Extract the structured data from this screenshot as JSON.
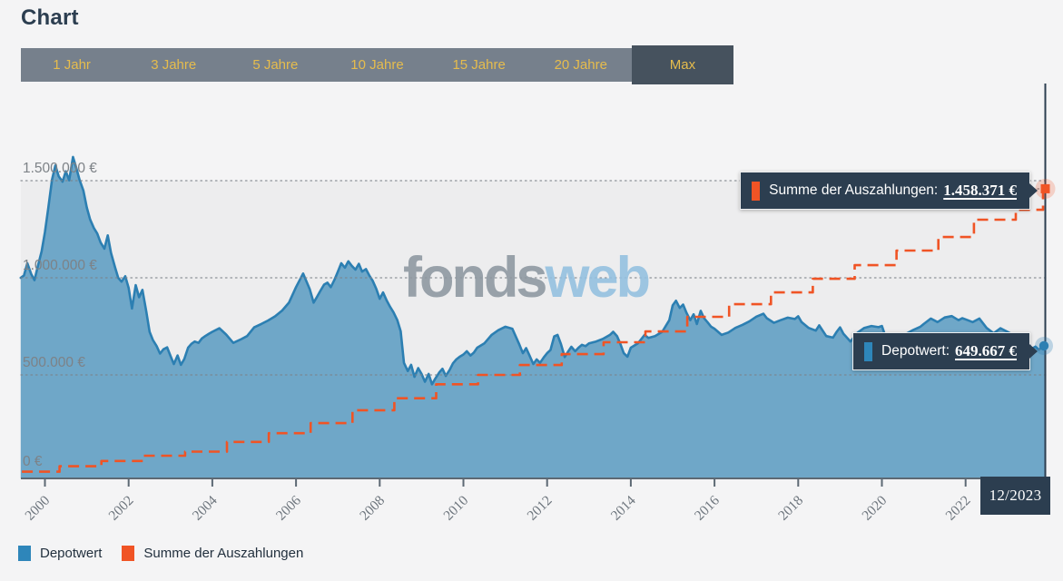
{
  "page": {
    "title": "Chart"
  },
  "tabs": {
    "items": [
      "1 Jahr",
      "3 Jahre",
      "5 Jahre",
      "10 Jahre",
      "15 Jahre",
      "20 Jahre",
      "Max"
    ],
    "selected": "Max"
  },
  "watermark": {
    "part1": "fonds",
    "part2": "web"
  },
  "tooltips": {
    "payout": {
      "label": "Summe der Auszahlungen:",
      "value": "1.458.371 €"
    },
    "depot": {
      "label": "Depotwert:",
      "value": "649.667 €"
    }
  },
  "date_badge": "12/2023",
  "legend": [
    {
      "label": "Depotwert",
      "color": "#2e86ba"
    },
    {
      "label": "Summe der Auszahlungen",
      "color": "#f05425"
    }
  ],
  "colors": {
    "page_bg": "#f4f4f5",
    "plot_band_bg": "#ededee",
    "tabbar_bg": "#76808c",
    "tab_selected_bg": "#46525e",
    "tab_text": "#e6bc4d",
    "navy": "#2c3e50",
    "depot_line": "#2c7fb2",
    "depot_fill": "#6fa7c8",
    "payout_line": "#f05425",
    "grid_dots": "#7d8288",
    "axis": "#5d6974",
    "x_label": "#6d757d",
    "y_label": "#7d8287"
  },
  "chart_data": {
    "type": "area",
    "title": "",
    "xlabel": "",
    "ylabel": "",
    "unit": "values in thousand EUR",
    "grid": "dotted-horizontal",
    "legend_position": "bottom-left",
    "x_range": [
      1999.42,
      2023.92
    ],
    "ylim": [
      0,
      2020
    ],
    "x_ticks": [
      2000,
      2002,
      2004,
      2006,
      2008,
      2010,
      2012,
      2014,
      2016,
      2018,
      2020,
      2022
    ],
    "y_ticks": [
      {
        "value": 1500,
        "label": "1.500.000 €"
      },
      {
        "value": 1000,
        "label": "1.000.000 €"
      },
      {
        "value": 500,
        "label": "500.000 €"
      },
      {
        "value": 0,
        "label": "0 €"
      }
    ],
    "end_date_label": "12/2023",
    "series": [
      {
        "name": "Depotwert",
        "type": "area",
        "line_color": "#2c7fb2",
        "fill_color": "#6fa7c8",
        "end_value": 649.667,
        "end_value_label": "649.667 €",
        "points": [
          [
            1999.42,
            1000
          ],
          [
            1999.5,
            1012
          ],
          [
            1999.58,
            1075
          ],
          [
            1999.67,
            1020
          ],
          [
            1999.75,
            988
          ],
          [
            1999.83,
            1060
          ],
          [
            1999.92,
            1135
          ],
          [
            2000.0,
            1235
          ],
          [
            2000.08,
            1360
          ],
          [
            2000.17,
            1505
          ],
          [
            2000.25,
            1578
          ],
          [
            2000.33,
            1522
          ],
          [
            2000.42,
            1495
          ],
          [
            2000.5,
            1548
          ],
          [
            2000.58,
            1502
          ],
          [
            2000.67,
            1622
          ],
          [
            2000.75,
            1565
          ],
          [
            2000.83,
            1502
          ],
          [
            2000.92,
            1448
          ],
          [
            2001.0,
            1362
          ],
          [
            2001.08,
            1300
          ],
          [
            2001.17,
            1256
          ],
          [
            2001.25,
            1228
          ],
          [
            2001.33,
            1182
          ],
          [
            2001.42,
            1150
          ],
          [
            2001.5,
            1218
          ],
          [
            2001.58,
            1128
          ],
          [
            2001.67,
            1058
          ],
          [
            2001.75,
            1000
          ],
          [
            2001.83,
            980
          ],
          [
            2001.92,
            1008
          ],
          [
            2002.0,
            948
          ],
          [
            2002.08,
            842
          ],
          [
            2002.17,
            962
          ],
          [
            2002.25,
            900
          ],
          [
            2002.33,
            938
          ],
          [
            2002.42,
            828
          ],
          [
            2002.5,
            722
          ],
          [
            2002.58,
            680
          ],
          [
            2002.67,
            648
          ],
          [
            2002.75,
            610
          ],
          [
            2002.83,
            632
          ],
          [
            2002.92,
            642
          ],
          [
            2003.0,
            598
          ],
          [
            2003.08,
            556
          ],
          [
            2003.17,
            600
          ],
          [
            2003.25,
            552
          ],
          [
            2003.33,
            582
          ],
          [
            2003.42,
            640
          ],
          [
            2003.5,
            660
          ],
          [
            2003.58,
            672
          ],
          [
            2003.67,
            665
          ],
          [
            2003.75,
            688
          ],
          [
            2003.83,
            700
          ],
          [
            2003.92,
            712
          ],
          [
            2004.0,
            722
          ],
          [
            2004.17,
            740
          ],
          [
            2004.33,
            708
          ],
          [
            2004.5,
            665
          ],
          [
            2004.67,
            682
          ],
          [
            2004.83,
            700
          ],
          [
            2005.0,
            745
          ],
          [
            2005.17,
            762
          ],
          [
            2005.33,
            780
          ],
          [
            2005.5,
            802
          ],
          [
            2005.67,
            832
          ],
          [
            2005.83,
            872
          ],
          [
            2006.0,
            952
          ],
          [
            2006.17,
            1022
          ],
          [
            2006.33,
            940
          ],
          [
            2006.42,
            872
          ],
          [
            2006.5,
            902
          ],
          [
            2006.58,
            932
          ],
          [
            2006.67,
            965
          ],
          [
            2006.75,
            975
          ],
          [
            2006.83,
            952
          ],
          [
            2006.92,
            990
          ],
          [
            2007.0,
            1032
          ],
          [
            2007.08,
            1075
          ],
          [
            2007.17,
            1052
          ],
          [
            2007.25,
            1085
          ],
          [
            2007.33,
            1062
          ],
          [
            2007.42,
            1042
          ],
          [
            2007.5,
            1072
          ],
          [
            2007.58,
            1032
          ],
          [
            2007.67,
            1045
          ],
          [
            2007.75,
            1012
          ],
          [
            2007.83,
            985
          ],
          [
            2007.92,
            942
          ],
          [
            2008.0,
            892
          ],
          [
            2008.08,
            925
          ],
          [
            2008.17,
            882
          ],
          [
            2008.25,
            850
          ],
          [
            2008.33,
            822
          ],
          [
            2008.42,
            782
          ],
          [
            2008.5,
            725
          ],
          [
            2008.58,
            562
          ],
          [
            2008.67,
            520
          ],
          [
            2008.75,
            552
          ],
          [
            2008.83,
            490
          ],
          [
            2008.92,
            535
          ],
          [
            2009.0,
            505
          ],
          [
            2009.08,
            465
          ],
          [
            2009.17,
            505
          ],
          [
            2009.25,
            452
          ],
          [
            2009.33,
            482
          ],
          [
            2009.42,
            512
          ],
          [
            2009.5,
            532
          ],
          [
            2009.58,
            495
          ],
          [
            2009.67,
            525
          ],
          [
            2009.75,
            560
          ],
          [
            2009.83,
            580
          ],
          [
            2009.92,
            595
          ],
          [
            2010.0,
            605
          ],
          [
            2010.08,
            622
          ],
          [
            2010.17,
            600
          ],
          [
            2010.25,
            615
          ],
          [
            2010.33,
            640
          ],
          [
            2010.5,
            662
          ],
          [
            2010.67,
            705
          ],
          [
            2010.83,
            730
          ],
          [
            2011.0,
            748
          ],
          [
            2011.17,
            738
          ],
          [
            2011.33,
            660
          ],
          [
            2011.42,
            612
          ],
          [
            2011.5,
            638
          ],
          [
            2011.58,
            600
          ],
          [
            2011.67,
            556
          ],
          [
            2011.75,
            580
          ],
          [
            2011.83,
            562
          ],
          [
            2011.92,
            590
          ],
          [
            2012.0,
            612
          ],
          [
            2012.08,
            628
          ],
          [
            2012.17,
            698
          ],
          [
            2012.25,
            706
          ],
          [
            2012.33,
            660
          ],
          [
            2012.42,
            592
          ],
          [
            2012.5,
            620
          ],
          [
            2012.58,
            645
          ],
          [
            2012.67,
            622
          ],
          [
            2012.75,
            640
          ],
          [
            2012.83,
            655
          ],
          [
            2012.92,
            648
          ],
          [
            2013.0,
            662
          ],
          [
            2013.17,
            672
          ],
          [
            2013.33,
            685
          ],
          [
            2013.5,
            706
          ],
          [
            2013.58,
            722
          ],
          [
            2013.67,
            700
          ],
          [
            2013.75,
            660
          ],
          [
            2013.83,
            612
          ],
          [
            2013.92,
            594
          ],
          [
            2014.0,
            640
          ],
          [
            2014.17,
            662
          ],
          [
            2014.33,
            706
          ],
          [
            2014.42,
            690
          ],
          [
            2014.58,
            700
          ],
          [
            2014.75,
            722
          ],
          [
            2014.92,
            782
          ],
          [
            2015.0,
            858
          ],
          [
            2015.08,
            882
          ],
          [
            2015.17,
            845
          ],
          [
            2015.25,
            862
          ],
          [
            2015.33,
            820
          ],
          [
            2015.42,
            782
          ],
          [
            2015.5,
            812
          ],
          [
            2015.58,
            762
          ],
          [
            2015.67,
            830
          ],
          [
            2015.75,
            792
          ],
          [
            2015.83,
            772
          ],
          [
            2015.92,
            748
          ],
          [
            2016.0,
            738
          ],
          [
            2016.17,
            706
          ],
          [
            2016.33,
            718
          ],
          [
            2016.5,
            742
          ],
          [
            2016.67,
            758
          ],
          [
            2016.83,
            775
          ],
          [
            2017.0,
            800
          ],
          [
            2017.17,
            815
          ],
          [
            2017.25,
            792
          ],
          [
            2017.42,
            768
          ],
          [
            2017.58,
            782
          ],
          [
            2017.75,
            795
          ],
          [
            2017.92,
            788
          ],
          [
            2018.0,
            802
          ],
          [
            2018.08,
            772
          ],
          [
            2018.25,
            742
          ],
          [
            2018.42,
            728
          ],
          [
            2018.5,
            755
          ],
          [
            2018.67,
            700
          ],
          [
            2018.83,
            692
          ],
          [
            2018.92,
            722
          ],
          [
            2019.0,
            745
          ],
          [
            2019.08,
            712
          ],
          [
            2019.25,
            672
          ],
          [
            2019.42,
            718
          ],
          [
            2019.58,
            742
          ],
          [
            2019.75,
            752
          ],
          [
            2019.92,
            746
          ],
          [
            2020.0,
            752
          ],
          [
            2020.17,
            645
          ],
          [
            2020.25,
            602
          ],
          [
            2020.42,
            682
          ],
          [
            2020.58,
            712
          ],
          [
            2020.75,
            732
          ],
          [
            2020.92,
            748
          ],
          [
            2021.0,
            762
          ],
          [
            2021.17,
            790
          ],
          [
            2021.33,
            772
          ],
          [
            2021.5,
            796
          ],
          [
            2021.67,
            803
          ],
          [
            2021.83,
            782
          ],
          [
            2021.92,
            792
          ],
          [
            2022.0,
            786
          ],
          [
            2022.17,
            772
          ],
          [
            2022.33,
            790
          ],
          [
            2022.5,
            742
          ],
          [
            2022.67,
            714
          ],
          [
            2022.83,
            740
          ],
          [
            2023.0,
            722
          ],
          [
            2023.17,
            702
          ],
          [
            2023.33,
            692
          ],
          [
            2023.5,
            662
          ],
          [
            2023.58,
            634
          ],
          [
            2023.67,
            646
          ],
          [
            2023.75,
            630
          ],
          [
            2023.83,
            642
          ],
          [
            2023.92,
            649.667
          ]
        ]
      },
      {
        "name": "Summe der Auszahlungen",
        "type": "step-line",
        "dashed": true,
        "color": "#f05425",
        "end_value": 1458.371,
        "end_value_label": "1.458.371 €",
        "steps": [
          [
            1999.45,
            2
          ],
          [
            2000.35,
            30
          ],
          [
            2001.35,
            57
          ],
          [
            2002.35,
            84
          ],
          [
            2003.35,
            105
          ],
          [
            2004.35,
            155
          ],
          [
            2005.35,
            200
          ],
          [
            2006.35,
            252
          ],
          [
            2007.35,
            318
          ],
          [
            2008.35,
            380
          ],
          [
            2009.35,
            452
          ],
          [
            2010.35,
            500
          ],
          [
            2011.35,
            551
          ],
          [
            2012.35,
            607
          ],
          [
            2013.35,
            668
          ],
          [
            2014.35,
            724
          ],
          [
            2015.35,
            799
          ],
          [
            2016.35,
            864
          ],
          [
            2017.35,
            925
          ],
          [
            2018.35,
            995
          ],
          [
            2019.35,
            1065
          ],
          [
            2020.35,
            1140
          ],
          [
            2021.35,
            1210
          ],
          [
            2022.2,
            1299
          ],
          [
            2023.2,
            1350
          ],
          [
            2023.85,
            1458.371
          ]
        ],
        "end_point": [
          2023.92,
          1458.371
        ]
      }
    ]
  }
}
